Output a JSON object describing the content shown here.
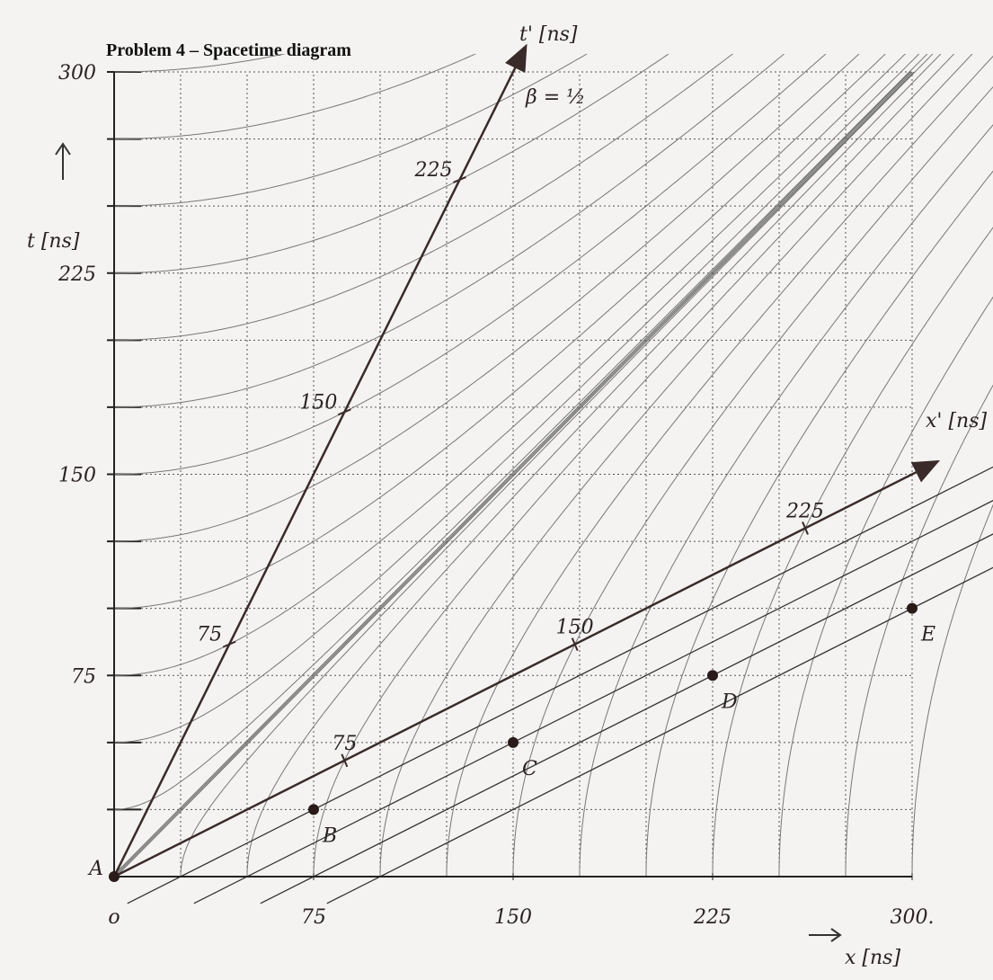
{
  "title": "Problem 4 – Spacetime diagram",
  "x_axis": {
    "label": "x [ns]",
    "lim": [
      0,
      300
    ],
    "ticks": [
      {
        "value": 0,
        "label": "o"
      },
      75,
      150,
      225,
      {
        "value": 300,
        "label": "300."
      }
    ]
  },
  "t_axis": {
    "label": "t [ns]",
    "lim": [
      0,
      300
    ],
    "ticks": [
      75,
      150,
      225,
      300
    ]
  },
  "grid": true,
  "beta": {
    "value": 0.5,
    "label": "β = ½"
  },
  "t_prime_axis": {
    "label": "t' [ns]",
    "ticks": [
      75,
      150,
      225
    ]
  },
  "x_prime_axis": {
    "label": "x' [ns]",
    "ticks": [
      75,
      150,
      225
    ]
  },
  "events": [
    {
      "label": "A",
      "x": 0,
      "t": 0
    },
    {
      "label": "B",
      "x": 75,
      "t": 25
    },
    {
      "label": "C",
      "x": 150,
      "t": 50
    },
    {
      "label": "D",
      "x": 225,
      "t": 75
    },
    {
      "label": "E",
      "x": 300,
      "t": 100
    }
  ]
}
